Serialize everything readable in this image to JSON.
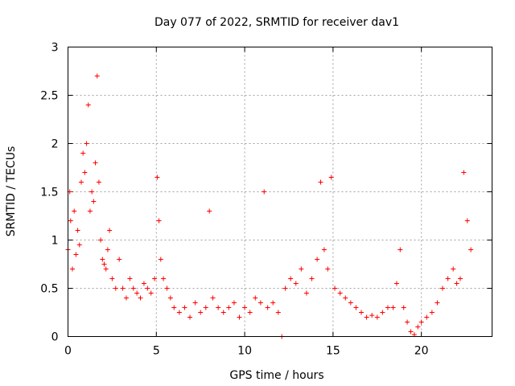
{
  "chart_data": {
    "type": "scatter",
    "title": "Day 077 of 2022, SRMTID for receiver dav1",
    "xlabel": "GPS time / hours",
    "ylabel": "SRMTID / TECUs",
    "xlim": [
      0,
      24
    ],
    "ylim": [
      0,
      3
    ],
    "xticks": [
      0,
      5,
      10,
      15,
      20
    ],
    "yticks": [
      0,
      0.5,
      1,
      1.5,
      2,
      2.5,
      3
    ],
    "xtick_labels": [
      "0",
      "5",
      "10",
      "15",
      "20"
    ],
    "ytick_labels": [
      "0",
      "0.5",
      "1",
      "1.5",
      "2",
      "2.5",
      "3"
    ],
    "grid": true,
    "marker": "+",
    "color": "#ff0000",
    "series": [
      {
        "name": "SRMTID",
        "x": [
          0.0,
          0.1,
          0.15,
          0.25,
          0.35,
          0.45,
          0.55,
          0.65,
          0.75,
          0.85,
          0.95,
          1.05,
          1.15,
          1.25,
          1.35,
          1.45,
          1.55,
          1.65,
          1.75,
          1.85,
          1.95,
          2.05,
          2.15,
          2.25,
          2.35,
          2.5,
          2.7,
          2.9,
          3.1,
          3.3,
          3.5,
          3.7,
          3.9,
          4.1,
          4.3,
          4.5,
          4.7,
          4.9,
          5.05,
          5.15,
          5.25,
          5.4,
          5.6,
          5.8,
          6.0,
          6.3,
          6.6,
          6.9,
          7.2,
          7.5,
          7.8,
          8.0,
          8.2,
          8.5,
          8.8,
          9.1,
          9.4,
          9.7,
          10.0,
          10.3,
          10.6,
          10.9,
          11.1,
          11.3,
          11.6,
          11.9,
          12.1,
          12.3,
          12.6,
          12.9,
          13.2,
          13.5,
          13.8,
          14.1,
          14.3,
          14.5,
          14.7,
          14.9,
          15.1,
          15.4,
          15.7,
          16.0,
          16.3,
          16.6,
          16.9,
          17.2,
          17.5,
          17.8,
          18.1,
          18.4,
          18.6,
          18.8,
          19.0,
          19.2,
          19.4,
          19.6,
          19.8,
          20.0,
          20.3,
          20.6,
          20.9,
          21.2,
          21.5,
          21.8,
          22.0,
          22.2,
          22.4,
          22.6,
          22.8
        ],
        "y": [
          0.9,
          1.5,
          1.2,
          0.7,
          1.3,
          0.85,
          1.1,
          0.95,
          1.6,
          1.9,
          1.7,
          2.0,
          2.4,
          1.3,
          1.5,
          1.4,
          1.8,
          2.7,
          1.6,
          1.0,
          0.8,
          0.75,
          0.7,
          0.9,
          1.1,
          0.6,
          0.5,
          0.8,
          0.5,
          0.4,
          0.6,
          0.5,
          0.45,
          0.4,
          0.55,
          0.5,
          0.45,
          0.6,
          1.65,
          1.2,
          0.8,
          0.6,
          0.5,
          0.4,
          0.3,
          0.25,
          0.3,
          0.2,
          0.35,
          0.25,
          0.3,
          1.3,
          0.4,
          0.3,
          0.25,
          0.3,
          0.35,
          0.2,
          0.3,
          0.25,
          0.4,
          0.35,
          1.5,
          0.3,
          0.35,
          0.25,
          0.0,
          0.5,
          0.6,
          0.55,
          0.7,
          0.45,
          0.6,
          0.8,
          1.6,
          0.9,
          0.7,
          1.65,
          0.5,
          0.45,
          0.4,
          0.35,
          0.3,
          0.25,
          0.2,
          0.22,
          0.2,
          0.25,
          0.3,
          0.3,
          0.55,
          0.9,
          0.3,
          0.15,
          0.05,
          0.02,
          0.1,
          0.15,
          0.2,
          0.25,
          0.35,
          0.5,
          0.6,
          0.7,
          0.55,
          0.6,
          1.7,
          1.2,
          0.9
        ]
      }
    ]
  }
}
